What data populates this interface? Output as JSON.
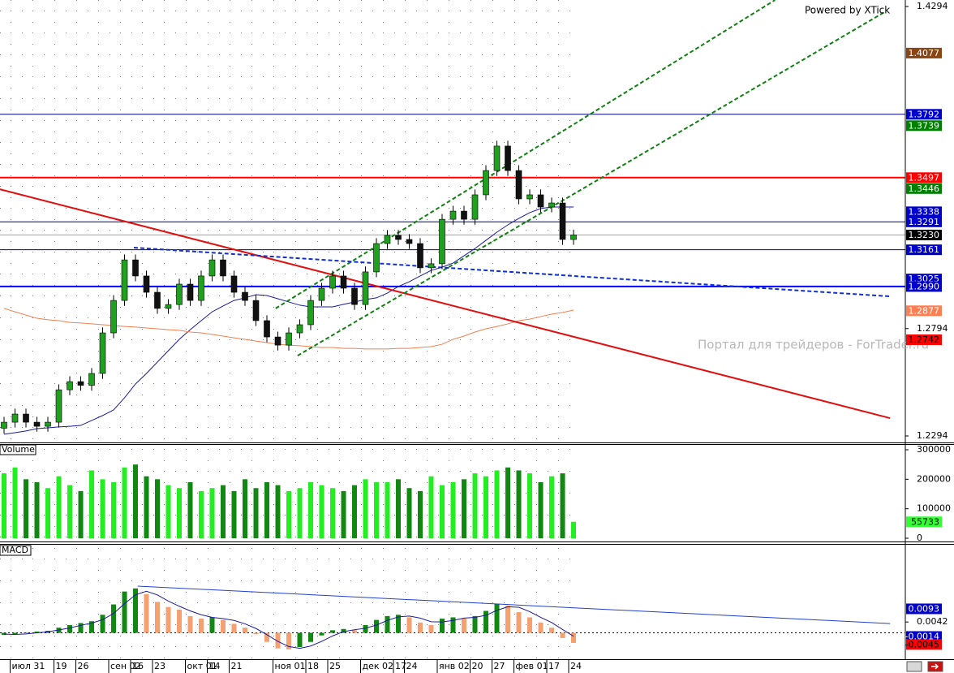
{
  "chart_data": [
    {
      "type": "candlestick",
      "credit": "Powered by XTick",
      "watermark": "Портал для трейдеров - ForTrader.ru",
      "categories": [
        null,
        "июл 31",
        null,
        null,
        null,
        "19",
        null,
        "26",
        null,
        null,
        "сен 02",
        null,
        "16",
        null,
        "23",
        null,
        null,
        "окт 01",
        null,
        "14",
        null,
        "21",
        null,
        null,
        null,
        "ноя 01",
        null,
        null,
        "18",
        null,
        "25",
        null,
        null,
        "дек 02",
        null,
        null,
        "17",
        "24",
        null,
        null,
        "янв 02",
        null,
        null,
        "20",
        null,
        "27",
        null,
        "фев 01",
        null,
        null,
        "17",
        null,
        "24"
      ],
      "open": [
        1.233,
        1.2358,
        1.2396,
        1.2358,
        1.2339,
        1.2358,
        1.2509,
        1.2547,
        1.253,
        1.2585,
        1.2774,
        1.2925,
        1.3114,
        1.3039,
        1.2963,
        1.2888,
        1.2906,
        1.3001,
        1.2925,
        1.3039,
        1.3114,
        1.3039,
        1.2963,
        1.2925,
        1.2831,
        1.2755,
        1.2717,
        1.2774,
        1.2812,
        1.2925,
        1.2982,
        1.3039,
        1.2982,
        1.2906,
        1.3058,
        1.319,
        1.3228,
        1.3209,
        1.319,
        1.3077,
        1.3096,
        1.3303,
        1.3341,
        1.3303,
        1.3417,
        1.353,
        1.3644,
        1.353,
        1.3398,
        1.3417,
        1.336,
        1.3379,
        1.3209
      ],
      "high": [
        1.2383,
        1.2421,
        1.2421,
        1.2383,
        1.2383,
        1.2534,
        1.2572,
        1.2572,
        1.261,
        1.2799,
        1.295,
        1.3139,
        1.3139,
        1.3064,
        1.2988,
        1.2931,
        1.3026,
        1.3026,
        1.3064,
        1.3139,
        1.3139,
        1.3064,
        1.2988,
        1.295,
        1.2856,
        1.278,
        1.2799,
        1.2837,
        1.295,
        1.3007,
        1.3064,
        1.3064,
        1.3007,
        1.3083,
        1.3215,
        1.3253,
        1.3253,
        1.3234,
        1.3215,
        1.3121,
        1.3328,
        1.3366,
        1.3366,
        1.3442,
        1.3555,
        1.3669,
        1.3669,
        1.3555,
        1.3442,
        1.3442,
        1.3404,
        1.3404,
        1.3255
      ],
      "low": [
        1.2305,
        1.2333,
        1.2333,
        1.2314,
        1.2314,
        1.2333,
        1.2484,
        1.2505,
        1.2505,
        1.256,
        1.2749,
        1.29,
        1.3014,
        1.2938,
        1.2863,
        1.2863,
        1.2881,
        1.29,
        1.29,
        1.3014,
        1.3014,
        1.2938,
        1.29,
        1.2806,
        1.273,
        1.2692,
        1.2692,
        1.2749,
        1.2787,
        1.29,
        1.2957,
        1.2957,
        1.2881,
        1.2881,
        1.3033,
        1.3165,
        1.3184,
        1.3165,
        1.3052,
        1.3052,
        1.3071,
        1.3278,
        1.3278,
        1.3278,
        1.3392,
        1.3505,
        1.3505,
        1.3373,
        1.3373,
        1.3335,
        1.3335,
        1.3184,
        1.3184
      ],
      "close": [
        1.2358,
        1.2396,
        1.2358,
        1.2339,
        1.2358,
        1.2509,
        1.2547,
        1.253,
        1.2585,
        1.2774,
        1.2925,
        1.3114,
        1.3039,
        1.2963,
        1.2888,
        1.2906,
        1.3001,
        1.2925,
        1.3039,
        1.3114,
        1.3039,
        1.2963,
        1.2925,
        1.2831,
        1.2755,
        1.2717,
        1.2774,
        1.2812,
        1.2925,
        1.2982,
        1.3039,
        1.2982,
        1.2906,
        1.3058,
        1.319,
        1.3228,
        1.3209,
        1.319,
        1.3077,
        1.3096,
        1.3303,
        1.3341,
        1.3303,
        1.3417,
        1.353,
        1.3644,
        1.353,
        1.3398,
        1.3417,
        1.336,
        1.3379,
        1.3209,
        1.323
      ],
      "up_color": "#1fa01f",
      "down_color": "#111111",
      "overlays": [
        {
          "color": "#1a1aa0",
          "values": [
            1.2302,
            1.2309,
            1.2317,
            1.2328,
            1.2332,
            1.2336,
            1.2339,
            1.2343,
            1.2366,
            1.2389,
            1.2415,
            1.2472,
            1.2536,
            1.2585,
            1.2638,
            1.2691,
            1.2744,
            1.2789,
            1.2831,
            1.2872,
            1.2899,
            1.2925,
            1.2937,
            1.2952,
            1.2948,
            1.2933,
            1.2918,
            1.2903,
            1.2895,
            1.2895,
            1.2895,
            1.2907,
            1.2918,
            1.2929,
            1.2937,
            1.2959,
            1.299,
            1.3012,
            1.3039,
            1.3065,
            1.308,
            1.3099,
            1.3133,
            1.3167,
            1.3205,
            1.3243,
            1.3277,
            1.3307,
            1.3334,
            1.3353,
            1.336,
            1.336,
            1.336
          ]
        },
        {
          "color": "#f08050",
          "values": [
            1.2888,
            1.2872,
            1.2857,
            1.2842,
            1.2835,
            1.2831,
            1.2823,
            1.282,
            1.2816,
            1.2812,
            1.2808,
            1.2804,
            1.2801,
            1.2797,
            1.2793,
            1.2789,
            1.2786,
            1.2778,
            1.2774,
            1.2767,
            1.2759,
            1.2751,
            1.2744,
            1.2736,
            1.2729,
            1.2721,
            1.2717,
            1.2714,
            1.271,
            1.2706,
            1.2706,
            1.2702,
            1.2702,
            1.2699,
            1.2699,
            1.2699,
            1.2702,
            1.2702,
            1.2706,
            1.271,
            1.2721,
            1.2744,
            1.2759,
            1.2778,
            1.2793,
            1.2804,
            1.2816,
            1.2831,
            1.2838,
            1.285,
            1.2861,
            1.2869,
            1.288
          ]
        }
      ],
      "trendlines": [
        {
          "color": "#e01010",
          "dashed": false,
          "x": [
            -0.4,
            80.9
          ],
          "values": [
            1.3443,
            1.2377
          ]
        },
        {
          "color": "#108010",
          "dashed": true,
          "x": [
            24.8,
            70.4
          ],
          "values": [
            1.2888,
            1.4324
          ]
        },
        {
          "color": "#108010",
          "dashed": true,
          "x": [
            26.8,
            80.4
          ],
          "values": [
            1.2668,
            1.4268
          ]
        },
        {
          "color": "#1030d0",
          "dashed": true,
          "x": [
            11.85,
            80.9
          ],
          "values": [
            1.3171,
            1.2944
          ]
        }
      ],
      "markers": [
        {
          "value": 1.4077,
          "label": "1.4077",
          "color": "#8b4513",
          "text_color": "#ffffff"
        },
        {
          "value": 1.3792,
          "label": "1.3792",
          "color": "#0000cc",
          "text_color": "#ffffff",
          "line_color": "#000080",
          "line_width": 1
        },
        {
          "value": 1.3739,
          "label": "1.3739",
          "color": "#008000",
          "text_color": "#ffffff"
        },
        {
          "value": 1.3497,
          "label": "1.3497",
          "color": "#ff0000",
          "text_color": "#ffffff",
          "line_color": "#ff0000",
          "line_width": 2
        },
        {
          "value": 1.3446,
          "label": "1.3446",
          "color": "#008000",
          "text_color": "#ffffff"
        },
        {
          "value": 1.3338,
          "label": "1.3338",
          "color": "#0000cc",
          "text_color": "#ffffff"
        },
        {
          "value": 1.3291,
          "label": "1.3291",
          "color": "#0000cc",
          "text_color": "#ffffff",
          "line_color": "#000080",
          "line_width": 1
        },
        {
          "value": 1.323,
          "label": "1.3230",
          "color": "#000000",
          "text_color": "#ffffff",
          "line_color": "#a0a0a0",
          "line_width": 1
        },
        {
          "value": 1.3161,
          "label": "1.3161",
          "color": "#0000cc",
          "text_color": "#ffffff",
          "line_color": "#000080",
          "line_width": 1
        },
        {
          "value": 1.3025,
          "label": "1.3025",
          "color": "#0000cc",
          "text_color": "#ffffff"
        },
        {
          "value": 1.299,
          "label": "1.2990",
          "color": "#0000cc",
          "text_color": "#ffffff",
          "line_color": "#0000ff",
          "line_width": 2
        },
        {
          "value": 1.2877,
          "label": "1.2877",
          "color": "#ff7f50",
          "text_color": "#ffffff"
        },
        {
          "value": 1.2742,
          "label": "1.2742",
          "color": "#ff0000",
          "text_color": "#000000"
        }
      ],
      "ylim": [
        1.2294,
        1.4294
      ],
      "yticks": [
        1.2294,
        1.2794,
        1.4294
      ]
    },
    {
      "type": "bar",
      "title": "Volume",
      "values": [
        220000,
        240000,
        200000,
        190000,
        170000,
        210000,
        180000,
        160000,
        230000,
        200000,
        190000,
        240000,
        250000,
        210000,
        200000,
        180000,
        170000,
        190000,
        160000,
        170000,
        180000,
        160000,
        200000,
        170000,
        190000,
        180000,
        160000,
        170000,
        190000,
        180000,
        170000,
        160000,
        180000,
        200000,
        190000,
        190000,
        200000,
        170000,
        160000,
        210000,
        180000,
        190000,
        200000,
        220000,
        210000,
        230000,
        240000,
        230000,
        220000,
        190000,
        210000,
        220000,
        55733
      ],
      "up_color": "#22ee22",
      "down_color": "#118811",
      "markers": [
        {
          "value": 55733,
          "label": "55733",
          "color": "#33ff33",
          "text_color": "#000000"
        }
      ],
      "ylim": [
        0,
        300000
      ],
      "yticks": [
        0,
        100000,
        200000,
        300000
      ]
    },
    {
      "type": "histogram-macd",
      "title": "MACD",
      "values": [
        -0.0008,
        -0.0005,
        0.0002,
        0.0005,
        0.0008,
        0.002,
        0.003,
        0.0038,
        0.0045,
        0.007,
        0.011,
        0.016,
        0.0172,
        0.015,
        0.012,
        0.01,
        0.009,
        0.0065,
        0.0055,
        0.006,
        0.005,
        0.0035,
        0.002,
        -0.0005,
        -0.0035,
        -0.006,
        -0.0064,
        -0.0055,
        -0.0035,
        -0.001,
        0.001,
        0.0015,
        0.001,
        0.003,
        0.005,
        0.0065,
        0.007,
        0.006,
        0.004,
        0.003,
        0.0055,
        0.006,
        0.0055,
        0.0065,
        0.0085,
        0.0112,
        0.0105,
        0.008,
        0.006,
        0.004,
        0.002,
        -0.002,
        -0.0039
      ],
      "signal": [
        -0.0005,
        -0.0006,
        -0.0004,
        0.0,
        0.0004,
        0.0011,
        0.0019,
        0.0029,
        0.0038,
        0.0051,
        0.0075,
        0.0113,
        0.0147,
        0.0161,
        0.0147,
        0.0123,
        0.0103,
        0.0085,
        0.007,
        0.006,
        0.0055,
        0.0048,
        0.0035,
        0.0017,
        -0.0007,
        -0.0033,
        -0.0053,
        -0.006,
        -0.0051,
        -0.0033,
        -0.0012,
        0.0005,
        0.0012,
        0.0018,
        0.003,
        0.0048,
        0.0062,
        0.0065,
        0.0057,
        0.0043,
        0.0042,
        0.0048,
        0.0057,
        0.006,
        0.0068,
        0.0087,
        0.0101,
        0.0099,
        0.0082,
        0.006,
        0.004,
        0.0013,
        -0.0013
      ],
      "rise_color": "#118811",
      "fall_color": "#f4a070",
      "signal_color": "#1a1aa0",
      "trendlines": [
        {
          "color": "#2040d0",
          "dashed": false,
          "x": [
            12.2,
            80.9
          ],
          "values": [
            0.0181,
            0.0036
          ]
        }
      ],
      "markers": [
        {
          "value": 0.0093,
          "label": "0.0093",
          "color": "#0000cc",
          "text_color": "#ffffff"
        },
        {
          "value": -0.0014,
          "label": "-0.0014",
          "color": "#0000cc",
          "text_color": "#ffffff"
        },
        {
          "value": -0.0045,
          "label": "-0.0045",
          "color": "#ff0000",
          "text_color": "#000000"
        }
      ],
      "ylim": [
        -0.0102,
        0.0338
      ],
      "yticks": [
        0.0042
      ]
    }
  ]
}
